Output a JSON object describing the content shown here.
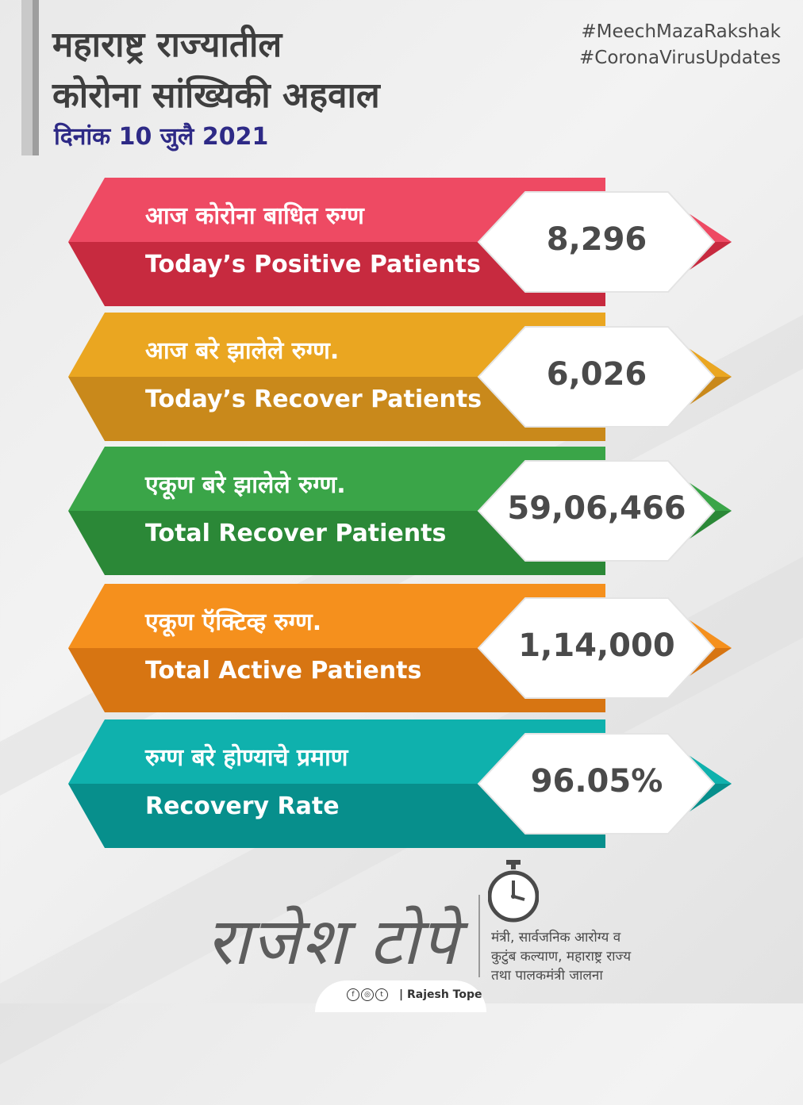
{
  "header": {
    "title_line1": "महाराष्ट्र राज्यातील",
    "title_line2": "कोरोना सांख्यिकी अहवाल",
    "date": "दिनांक 10 जुलै 2021",
    "hashtags": [
      "#MeechMazaRakshak",
      "#CoronaVirusUpdates"
    ]
  },
  "cards": [
    {
      "marathi": "आज कोरोना बाधित रुग्ण",
      "english": "Today’s Positive Patients",
      "value": "8,296",
      "color_top": "#ee4a63",
      "color_bottom": "#c72a3f"
    },
    {
      "marathi": "आज बरे झालेले रुग्ण.",
      "english": "Today’s Recover Patients",
      "value": "6,026",
      "color_top": "#eaa621",
      "color_bottom": "#c9891b"
    },
    {
      "marathi": "एकूण बरे झालेले रुग्ण.",
      "english": "Total Recover Patients",
      "value": "59,06,466",
      "color_top": "#3aa548",
      "color_bottom": "#2b8837"
    },
    {
      "marathi": "एकूण ऍक्टिव्ह रुग्ण.",
      "english": "Total Active Patients",
      "value": "1,14,000",
      "color_top": "#f5901d",
      "color_bottom": "#d77512"
    },
    {
      "marathi": "रुग्ण बरे होण्याचे प्रमाण",
      "english": "Recovery Rate",
      "value": "96.05%",
      "color_top": "#0fb1ad",
      "color_bottom": "#078f8c"
    }
  ],
  "footer": {
    "signature": "राजेश टोपे",
    "role_line1": "मंत्री, सार्वजनिक आरोग्य व",
    "role_line2": "कुटुंब कल्याण, महाराष्ट्र राज्य",
    "role_line3": "तथा पालकमंत्री जालना",
    "social_name": "| Rajesh Tope",
    "icons": [
      "facebook-icon",
      "instagram-icon",
      "twitter-icon"
    ]
  }
}
